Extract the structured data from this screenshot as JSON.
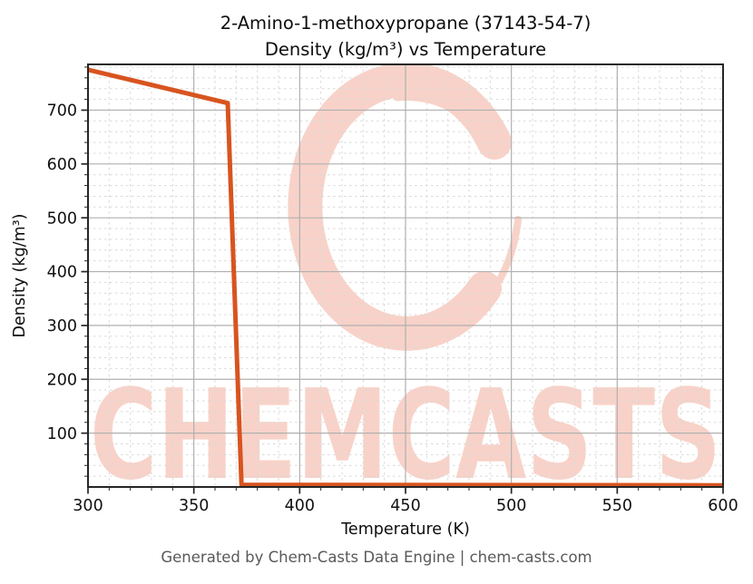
{
  "title": {
    "line1": "2-Amino-1-methoxypropane (37143-54-7)",
    "line2": "Density (kg/m³) vs Temperature"
  },
  "footer": "Generated by Chem-Casts Data Engine | chem-casts.com",
  "watermark": {
    "text": "CHEMCASTS",
    "logo": "c-swoosh-logo",
    "color": "#f8d2c8"
  },
  "colors": {
    "line": "#d8541f",
    "spine": "#262626",
    "major_grid": "#b0b0b0",
    "minor_grid": "#d9d9d9",
    "tick_label": "#111111",
    "footer_text": "#595959"
  },
  "chart_data": {
    "type": "line",
    "title": "2-Amino-1-methoxypropane (37143-54-7) Density (kg/m³) vs Temperature",
    "xlabel": "Temperature (K)",
    "ylabel": "Density (kg/m³)",
    "xlim": [
      300,
      600
    ],
    "ylim": [
      0,
      785
    ],
    "x_major_ticks": [
      300,
      350,
      400,
      450,
      500,
      550,
      600
    ],
    "y_major_ticks": [
      100,
      200,
      300,
      400,
      500,
      600,
      700
    ],
    "x_minor_step": 10,
    "y_minor_step": 20,
    "grid": true,
    "legend": "none",
    "series": [
      {
        "name": "Density",
        "color": "#d8541f",
        "points": [
          [
            300,
            775
          ],
          [
            366,
            713
          ],
          [
            372.5,
            4
          ],
          [
            600,
            3
          ]
        ]
      }
    ]
  }
}
